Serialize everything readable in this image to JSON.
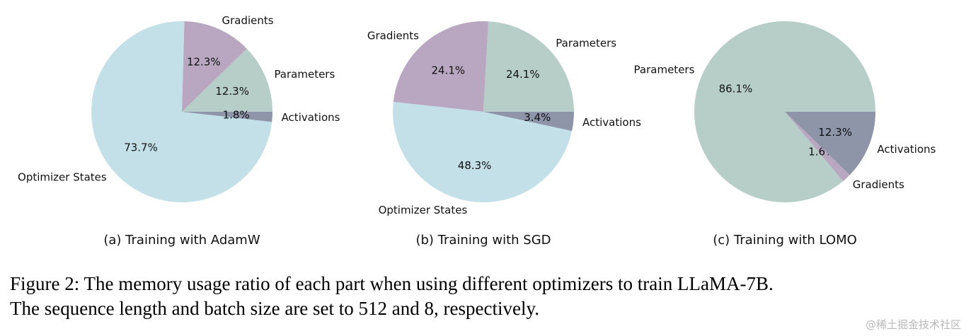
{
  "chart_data": [
    {
      "type": "pie",
      "subcaption": "(a) Training with AdamW",
      "start_angle_deg": 0,
      "direction": "counterclockwise",
      "slices": [
        {
          "label": "Parameters",
          "value": 12.3,
          "pct_label": "12.3%",
          "color": "#b7cec8"
        },
        {
          "label": "Gradients",
          "value": 12.3,
          "pct_label": "12.3%",
          "color": "#b9a7c2"
        },
        {
          "label": "Optimizer States",
          "value": 73.7,
          "pct_label": "73.7%",
          "color": "#c3e0e9"
        },
        {
          "label": "Activations",
          "value": 1.8,
          "pct_label": "1.8%",
          "color": "#8e95a9"
        }
      ]
    },
    {
      "type": "pie",
      "subcaption": "(b) Training with SGD",
      "start_angle_deg": 0,
      "direction": "counterclockwise",
      "slices": [
        {
          "label": "Parameters",
          "value": 24.1,
          "pct_label": "24.1%",
          "color": "#b7cec8"
        },
        {
          "label": "Gradients",
          "value": 24.1,
          "pct_label": "24.1%",
          "color": "#b9a7c2"
        },
        {
          "label": "Optimizer States",
          "value": 48.3,
          "pct_label": "48.3%",
          "color": "#c3e0e9"
        },
        {
          "label": "Activations",
          "value": 3.4,
          "pct_label": "3.4%",
          "color": "#8e95a9"
        }
      ]
    },
    {
      "type": "pie",
      "subcaption": "(c) Training with LOMO",
      "start_angle_deg": 0,
      "direction": "counterclockwise",
      "slices": [
        {
          "label": "Parameters",
          "value": 86.1,
          "pct_label": "86.1%",
          "color": "#b7cec8"
        },
        {
          "label": "Gradients",
          "value": 1.6,
          "pct_label": "1.6%",
          "color": "#b9a7c2"
        },
        {
          "label": "Activations",
          "value": 12.3,
          "pct_label": "12.3%",
          "color": "#8e95a9"
        }
      ]
    }
  ],
  "caption": {
    "line1": "Figure 2: The memory usage ratio of each part when using different optimizers to train LLaMA-7B.",
    "line2": "The sequence length and batch size are set to 512 and 8, respectively."
  },
  "watermark": "@稀土掘金技术社区"
}
